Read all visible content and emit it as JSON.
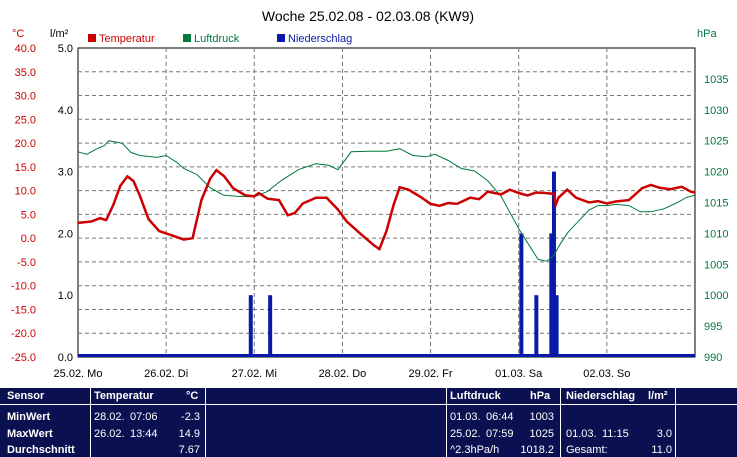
{
  "title": "Woche 25.02.08 - 02.03.08 (KW9)",
  "colors": {
    "temperature": "#cc0000",
    "pressure": "#007a3d",
    "precip": "#0a1aa8",
    "panel_bg": "#0b1050",
    "grid": "#777777"
  },
  "chart_data": {
    "type": "line",
    "title": "Woche 25.02.08 - 02.03.08 (KW9)",
    "x_unit": "days since 25.02.08 00:00",
    "xlim": [
      0,
      7
    ],
    "x_ticks": [
      {
        "x": 0,
        "label": "25.02.  Mo"
      },
      {
        "x": 1,
        "label": "26.02.  Di"
      },
      {
        "x": 2,
        "label": "27.02.  Mi"
      },
      {
        "x": 3,
        "label": "28.02.  Do"
      },
      {
        "x": 4,
        "label": "29.02.  Fr"
      },
      {
        "x": 5,
        "label": "01.03.  Sa"
      },
      {
        "x": 6,
        "label": "02.03.  So"
      }
    ],
    "axes": {
      "temp": {
        "unit": "°C",
        "min": -25,
        "max": 40,
        "ticks": [
          "40.0",
          "35.0",
          "30.0",
          "25.0",
          "20.0",
          "15.0",
          "10.0",
          "5.0",
          "0.0",
          "-5.0",
          "-10.0",
          "-15.0",
          "-20.0",
          "-25.0"
        ]
      },
      "precip": {
        "unit": "l/m²",
        "min": 0,
        "max": 5,
        "ticks": [
          "5.0",
          "4.0",
          "3.0",
          "2.0",
          "1.0",
          "0.0"
        ]
      },
      "pressure": {
        "unit": "hPa",
        "min": 990,
        "max": 1040,
        "ticks": [
          "1035",
          "1030",
          "1025",
          "1020",
          "1015",
          "1010",
          "1005",
          "1000",
          "995",
          "990"
        ]
      }
    },
    "legend": [
      "Temperatur",
      "Luftdruck",
      "Niederschlag"
    ],
    "series": [
      {
        "name": "Temperatur",
        "axis": "temp",
        "points": [
          [
            0,
            3.2
          ],
          [
            0.15,
            3.5
          ],
          [
            0.25,
            4.2
          ],
          [
            0.32,
            3.8
          ],
          [
            0.4,
            7
          ],
          [
            0.48,
            11
          ],
          [
            0.56,
            13
          ],
          [
            0.63,
            12
          ],
          [
            0.7,
            9
          ],
          [
            0.8,
            4
          ],
          [
            0.92,
            1.5
          ],
          [
            1.08,
            0.5
          ],
          [
            1.2,
            -0.3
          ],
          [
            1.3,
            0
          ],
          [
            1.4,
            8
          ],
          [
            1.5,
            12.5
          ],
          [
            1.57,
            14.3
          ],
          [
            1.66,
            13
          ],
          [
            1.76,
            10.5
          ],
          [
            1.9,
            9
          ],
          [
            2.0,
            8.8
          ],
          [
            2.05,
            9.5
          ],
          [
            2.15,
            8.3
          ],
          [
            2.28,
            8
          ],
          [
            2.38,
            4.8
          ],
          [
            2.46,
            5.3
          ],
          [
            2.55,
            7.3
          ],
          [
            2.7,
            8.5
          ],
          [
            2.82,
            8.5
          ],
          [
            2.95,
            6
          ],
          [
            3.05,
            3.5
          ],
          [
            3.2,
            1
          ],
          [
            3.35,
            -1.4
          ],
          [
            3.42,
            -2.3
          ],
          [
            3.5,
            1.5
          ],
          [
            3.58,
            7
          ],
          [
            3.65,
            10.7
          ],
          [
            3.75,
            10.2
          ],
          [
            3.9,
            8.5
          ],
          [
            4.0,
            7.2
          ],
          [
            4.1,
            6.8
          ],
          [
            4.2,
            7.4
          ],
          [
            4.3,
            7.2
          ],
          [
            4.45,
            8.5
          ],
          [
            4.55,
            8.2
          ],
          [
            4.65,
            9.8
          ],
          [
            4.8,
            9.2
          ],
          [
            4.9,
            10.2
          ],
          [
            5.0,
            9.5
          ],
          [
            5.1,
            9
          ],
          [
            5.2,
            9.6
          ],
          [
            5.3,
            9.5
          ],
          [
            5.4,
            9.3
          ],
          [
            5.42,
            7
          ],
          [
            5.45,
            8.5
          ],
          [
            5.55,
            10.2
          ],
          [
            5.65,
            8.5
          ],
          [
            5.8,
            7.5
          ],
          [
            5.9,
            7.8
          ],
          [
            6.0,
            7.3
          ],
          [
            6.1,
            7.7
          ],
          [
            6.25,
            8
          ],
          [
            6.4,
            10.5
          ],
          [
            6.5,
            11.2
          ],
          [
            6.6,
            10.6
          ],
          [
            6.72,
            10.3
          ],
          [
            6.85,
            10.8
          ],
          [
            6.95,
            9.8
          ],
          [
            7,
            9.6
          ]
        ]
      },
      {
        "name": "Luftdruck",
        "axis": "pressure",
        "points": [
          [
            0,
            1023.2
          ],
          [
            0.1,
            1022.8
          ],
          [
            0.2,
            1023.6
          ],
          [
            0.3,
            1024.2
          ],
          [
            0.35,
            1025
          ],
          [
            0.5,
            1024.6
          ],
          [
            0.6,
            1023.1
          ],
          [
            0.7,
            1022.6
          ],
          [
            0.9,
            1022.3
          ],
          [
            1.0,
            1022.6
          ],
          [
            1.12,
            1021.5
          ],
          [
            1.2,
            1020.5
          ],
          [
            1.35,
            1019.5
          ],
          [
            1.5,
            1017.4
          ],
          [
            1.65,
            1016.2
          ],
          [
            1.8,
            1016
          ],
          [
            2.0,
            1015.9
          ],
          [
            2.15,
            1016.8
          ],
          [
            2.3,
            1018.5
          ],
          [
            2.5,
            1020.3
          ],
          [
            2.7,
            1021.3
          ],
          [
            2.85,
            1021
          ],
          [
            2.95,
            1020.3
          ],
          [
            3.1,
            1023.2
          ],
          [
            3.3,
            1023.3
          ],
          [
            3.5,
            1023.3
          ],
          [
            3.65,
            1023.7
          ],
          [
            3.8,
            1022.6
          ],
          [
            3.95,
            1022.4
          ],
          [
            4.05,
            1022.8
          ],
          [
            4.2,
            1021.8
          ],
          [
            4.35,
            1020.5
          ],
          [
            4.5,
            1020.1
          ],
          [
            4.65,
            1018.5
          ],
          [
            4.8,
            1016
          ],
          [
            5.0,
            1010.8
          ],
          [
            5.1,
            1008.5
          ],
          [
            5.22,
            1005.8
          ],
          [
            5.32,
            1005.5
          ],
          [
            5.4,
            1006.5
          ],
          [
            5.48,
            1008.5
          ],
          [
            5.56,
            1010.2
          ],
          [
            5.7,
            1012.3
          ],
          [
            5.8,
            1013.8
          ],
          [
            5.9,
            1014.5
          ],
          [
            6.0,
            1014.5
          ],
          [
            6.1,
            1014.7
          ],
          [
            6.25,
            1014.5
          ],
          [
            6.38,
            1013.5
          ],
          [
            6.5,
            1013.5
          ],
          [
            6.65,
            1014
          ],
          [
            6.8,
            1015
          ],
          [
            6.9,
            1015.8
          ],
          [
            7,
            1016.2
          ]
        ]
      },
      {
        "name": "Niederschlag",
        "axis": "precip",
        "type": "bar",
        "points": [
          [
            1.96,
            1.0
          ],
          [
            2.18,
            1.0
          ],
          [
            5.03,
            2.0
          ],
          [
            5.2,
            1.0
          ],
          [
            5.37,
            2.0
          ],
          [
            5.4,
            3.0
          ],
          [
            5.43,
            1.0
          ]
        ]
      }
    ]
  },
  "stats": {
    "headers": {
      "sensor": "Sensor",
      "temp": "Temperatur",
      "temp_unit": "°C",
      "pressure": "Luftdruck",
      "pressure_unit": "hPa",
      "precip": "Niederschlag",
      "precip_unit": "l/m²"
    },
    "rows": [
      {
        "label": "MinWert",
        "temp_date": "28.02.",
        "temp_time": "07:06",
        "temp_value": "-2.3",
        "pressure_date": "01.03.",
        "pressure_time": "06:44",
        "pressure_value": "1003",
        "precip_date": "",
        "precip_time": "",
        "precip_value": ""
      },
      {
        "label": "MaxWert",
        "temp_date": "26.02.",
        "temp_time": "13:44",
        "temp_value": "14.9",
        "pressure_date": "25.02.",
        "pressure_time": "07:59",
        "pressure_value": "1025",
        "precip_date": "01.03.",
        "precip_time": "11:15",
        "precip_value": "3.0"
      },
      {
        "label": "Durchschnitt",
        "temp_date": "",
        "temp_time": "",
        "temp_value": "7.67",
        "pressure_date": "^2.3hPa/h",
        "pressure_time": "",
        "pressure_value": "1018.2",
        "precip_date": "Gesamt:",
        "precip_time": "",
        "precip_value": "11.0"
      }
    ]
  }
}
